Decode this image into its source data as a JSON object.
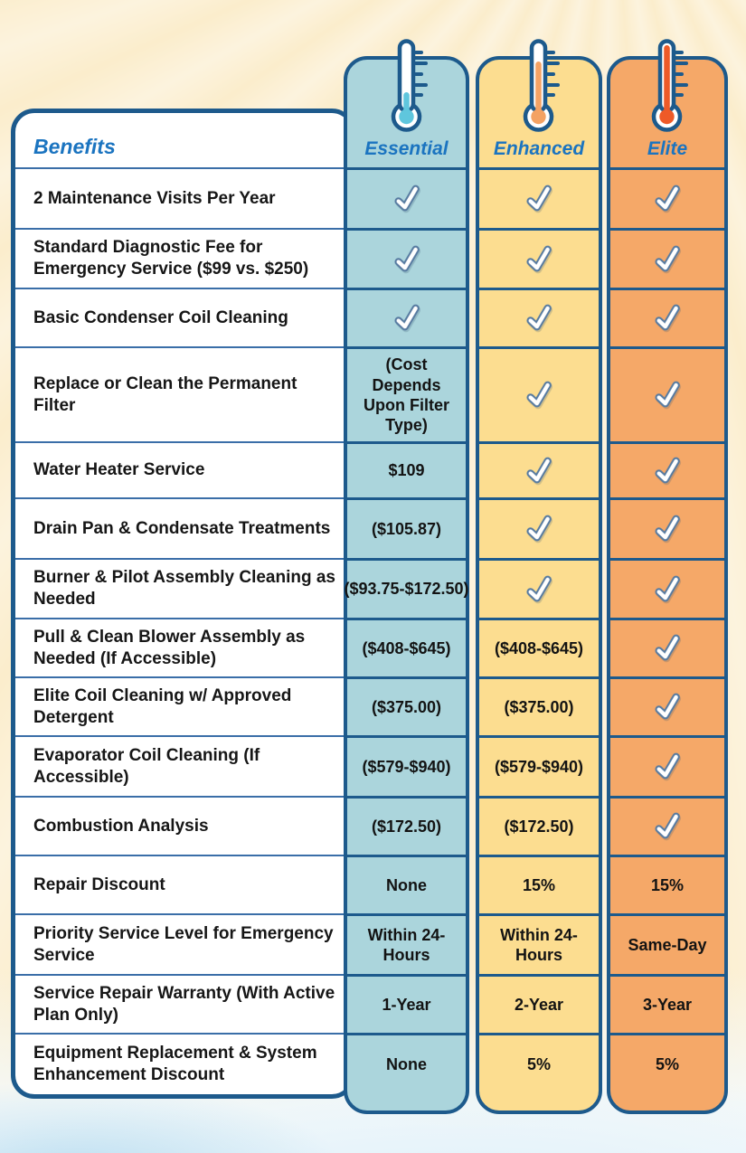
{
  "table": {
    "benefits_header": "Benefits",
    "columns": [
      {
        "name": "Essential",
        "thermometer_level": "low"
      },
      {
        "name": "Enhanced",
        "thermometer_level": "medium"
      },
      {
        "name": "Elite",
        "thermometer_level": "high"
      }
    ],
    "rows": [
      {
        "label": "2 Maintenance Visits Per Year",
        "essential": "check",
        "enhanced": "check",
        "elite": "check"
      },
      {
        "label": "Standard Diagnostic Fee for Emergency Service ($99 vs. $250)",
        "essential": "check",
        "enhanced": "check",
        "elite": "check"
      },
      {
        "label": "Basic Condenser Coil Cleaning",
        "essential": "check",
        "enhanced": "check",
        "elite": "check"
      },
      {
        "label": "Replace or Clean the Permanent Filter",
        "essential": "(Cost Depends Upon Filter Type)",
        "enhanced": "check",
        "elite": "check"
      },
      {
        "label": "Water Heater Service",
        "essential": "$109",
        "enhanced": "check",
        "elite": "check"
      },
      {
        "label": "Drain Pan & Condensate Treatments",
        "essential": "($105.87)",
        "enhanced": "check",
        "elite": "check"
      },
      {
        "label": "Burner & Pilot Assembly Cleaning as Needed",
        "essential": "($93.75-$172.50)",
        "enhanced": "check",
        "elite": "check"
      },
      {
        "label": "Pull & Clean Blower Assembly as Needed (If Accessible)",
        "essential": "($408-$645)",
        "enhanced": "($408-$645)",
        "elite": "check"
      },
      {
        "label": "Elite Coil Cleaning w/ Approved Detergent",
        "essential": "($375.00)",
        "enhanced": "($375.00)",
        "elite": "check"
      },
      {
        "label": "Evaporator Coil Cleaning (If Accessible)",
        "essential": "($579-$940)",
        "enhanced": "($579-$940)",
        "elite": "check"
      },
      {
        "label": "Combustion Analysis",
        "essential": "($172.50)",
        "enhanced": "($172.50)",
        "elite": "check"
      },
      {
        "label": "Repair Discount",
        "essential": "None",
        "enhanced": "15%",
        "elite": "15%"
      },
      {
        "label": "Priority Service Level for Emergency Service",
        "essential": "Within 24-Hours",
        "enhanced": "Within 24-Hours",
        "elite": "Same-Day"
      },
      {
        "label": "Service Repair Warranty (With Active Plan Only)",
        "essential": "1-Year",
        "enhanced": "2-Year",
        "elite": "3-Year"
      },
      {
        "label": "Equipment Replacement & System Enhancement Discount",
        "essential": "None",
        "enhanced": "5%",
        "elite": "5%"
      }
    ]
  },
  "colors": {
    "card_border": "#1d5a8c",
    "row_divider": "#3a6ea8",
    "essential_fill": "#abd5dc",
    "enhanced_fill": "#fcdd90",
    "elite_fill": "#f5a868",
    "essential_mercury": "#5fc6dd",
    "enhanced_mercury": "#f4a263",
    "elite_mercury": "#ee5a28",
    "header_text": "#1b74c0",
    "label_text": "#161616",
    "background": "#fbedcc",
    "check_outline": "#567aa0"
  }
}
